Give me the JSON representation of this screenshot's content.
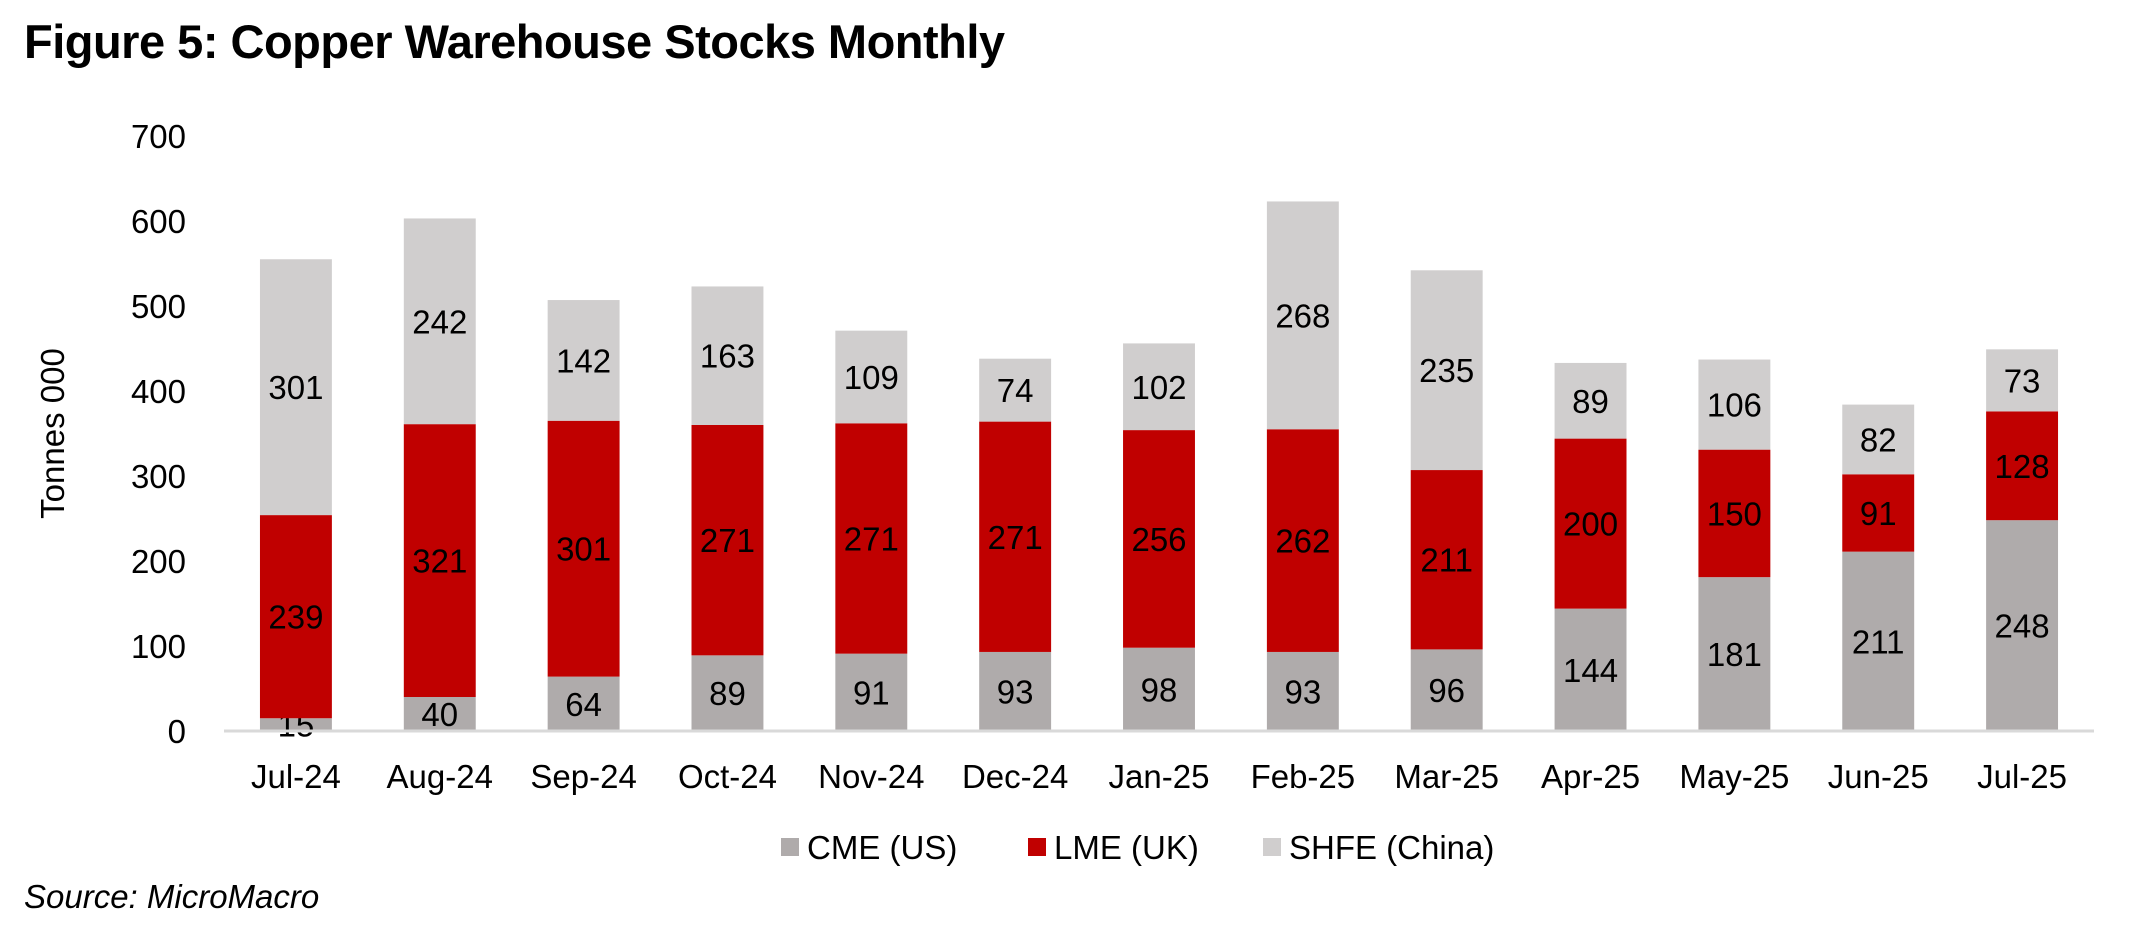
{
  "title": "Figure 5: Copper Warehouse Stocks Monthly",
  "source": "Source: MicroMacro",
  "chart_data": {
    "type": "bar",
    "stacked": true,
    "title": "Figure 5: Copper Warehouse Stocks Monthly",
    "xlabel": "",
    "ylabel": "Tonnes 000",
    "ylim": [
      0,
      700
    ],
    "yticks": [
      0,
      100,
      200,
      300,
      400,
      500,
      600,
      700
    ],
    "grid": false,
    "legend_position": "bottom",
    "categories": [
      "Jul-24",
      "Aug-24",
      "Sep-24",
      "Oct-24",
      "Nov-24",
      "Dec-24",
      "Jan-25",
      "Feb-25",
      "Mar-25",
      "Apr-25",
      "May-25",
      "Jun-25",
      "Jul-25"
    ],
    "series": [
      {
        "name": "CME (US)",
        "color": "#AFABAB",
        "values": [
          15,
          40,
          64,
          89,
          91,
          93,
          98,
          93,
          96,
          144,
          181,
          211,
          248
        ]
      },
      {
        "name": "LME (UK)",
        "color": "#C00000",
        "values": [
          239,
          321,
          301,
          271,
          271,
          271,
          256,
          262,
          211,
          200,
          150,
          91,
          128
        ]
      },
      {
        "name": "SHFE (China)",
        "color": "#D0CECE",
        "values": [
          301,
          242,
          142,
          163,
          109,
          74,
          102,
          268,
          235,
          89,
          106,
          82,
          73
        ]
      }
    ]
  }
}
